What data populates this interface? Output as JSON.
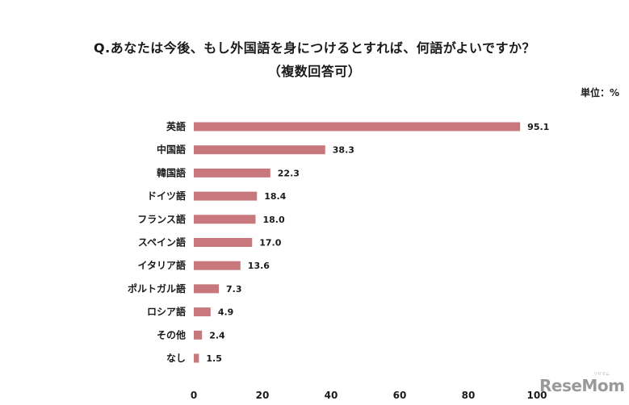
{
  "title_line1": "Q.あなたは今後、もし外国語を身につけるとすれば、何語がよいですか？",
  "title_line2": "（複数回答可）",
  "unit_label": "単位：%",
  "watermark": {
    "text": "ReseMom",
    "sub": "リセマム"
  },
  "colors": {
    "bar": "#c8777d",
    "text": "#1a1a1a"
  },
  "chart_data": {
    "type": "bar",
    "orientation": "horizontal",
    "title": "Q.あなたは今後、もし外国語を身につけるとすれば、何語がよいですか？",
    "subtitle": "（複数回答可）",
    "unit": "単位：%",
    "categories": [
      "英語",
      "中国語",
      "韓国語",
      "ドイツ語",
      "フランス語",
      "スペイン語",
      "イタリア語",
      "ポルトガル語",
      "ロシア語",
      "その他",
      "なし"
    ],
    "values": [
      95.1,
      38.3,
      22.3,
      18.4,
      18.0,
      17.0,
      13.6,
      7.3,
      4.9,
      2.4,
      1.5
    ],
    "value_labels": [
      "95.1",
      "38.3",
      "22.3",
      "18.4",
      "18.0",
      "17.0",
      "13.6",
      "7.3",
      "4.9",
      "2.4",
      "1.5"
    ],
    "xlim": [
      0,
      100
    ],
    "xticks": [
      0,
      20,
      40,
      60,
      80,
      100
    ],
    "grid": false,
    "legend": "none"
  }
}
